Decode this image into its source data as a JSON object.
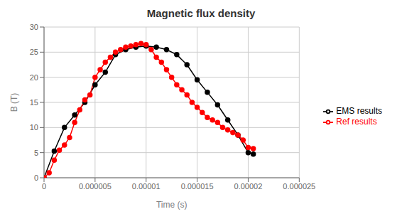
{
  "chart_data": {
    "type": "line",
    "title": "Magnetic flux density",
    "x_label": "Time (s)",
    "y_label": "B (T)",
    "xlim": [
      0,
      2.5e-05
    ],
    "ylim": [
      0,
      30
    ],
    "xticks": [
      0,
      5e-06,
      1e-05,
      1.5e-05,
      2e-05,
      2.5e-05
    ],
    "yticks": [
      0,
      5,
      10,
      15,
      20,
      25,
      30
    ],
    "grid": true,
    "legend": "right",
    "series": [
      {
        "name": "EMS results",
        "color": "#000000",
        "marker": "circle",
        "x": [
          0,
          1e-06,
          2e-06,
          3e-06,
          4e-06,
          5e-06,
          6e-06,
          7e-06,
          8e-06,
          9e-06,
          1e-05,
          1.1e-05,
          1.2e-05,
          1.3e-05,
          1.4e-05,
          1.5e-05,
          1.6e-05,
          1.7e-05,
          1.8e-05,
          1.9e-05,
          2e-05,
          2.05e-05
        ],
        "values": [
          0,
          5.3,
          10.0,
          12.5,
          15.0,
          18.5,
          21.0,
          24.5,
          25.5,
          26.0,
          26.2,
          26.0,
          25.5,
          24.5,
          22.5,
          19.5,
          17.0,
          14.5,
          11.5,
          8.5,
          5.0,
          4.7
        ]
      },
      {
        "name": "Ref results",
        "color": "#ff0000",
        "marker": "circle",
        "x": [
          0,
          5e-07,
          1e-06,
          1.5e-06,
          2e-06,
          2.5e-06,
          3e-06,
          3.5e-06,
          4e-06,
          4.5e-06,
          5e-06,
          5.5e-06,
          6e-06,
          6.5e-06,
          7e-06,
          7.5e-06,
          8e-06,
          8.5e-06,
          9e-06,
          9.5e-06,
          1e-05,
          1.05e-05,
          1.1e-05,
          1.15e-05,
          1.2e-05,
          1.25e-05,
          1.3e-05,
          1.35e-05,
          1.4e-05,
          1.45e-05,
          1.5e-05,
          1.55e-05,
          1.6e-05,
          1.65e-05,
          1.7e-05,
          1.75e-05,
          1.8e-05,
          1.85e-05,
          1.9e-05,
          1.95e-05,
          2e-05,
          2.05e-05
        ],
        "values": [
          0,
          1.0,
          3.5,
          5.5,
          6.5,
          8.0,
          11.0,
          13.5,
          15.5,
          16.5,
          20.0,
          21.5,
          23.0,
          24.0,
          25.0,
          25.5,
          26.0,
          26.2,
          26.5,
          26.7,
          26.5,
          25.5,
          24.0,
          23.0,
          21.5,
          20.0,
          18.5,
          17.5,
          16.5,
          15.0,
          14.0,
          13.0,
          12.0,
          11.5,
          11.0,
          10.0,
          9.5,
          9.0,
          8.5,
          7.5,
          6.0,
          5.8
        ]
      }
    ]
  }
}
